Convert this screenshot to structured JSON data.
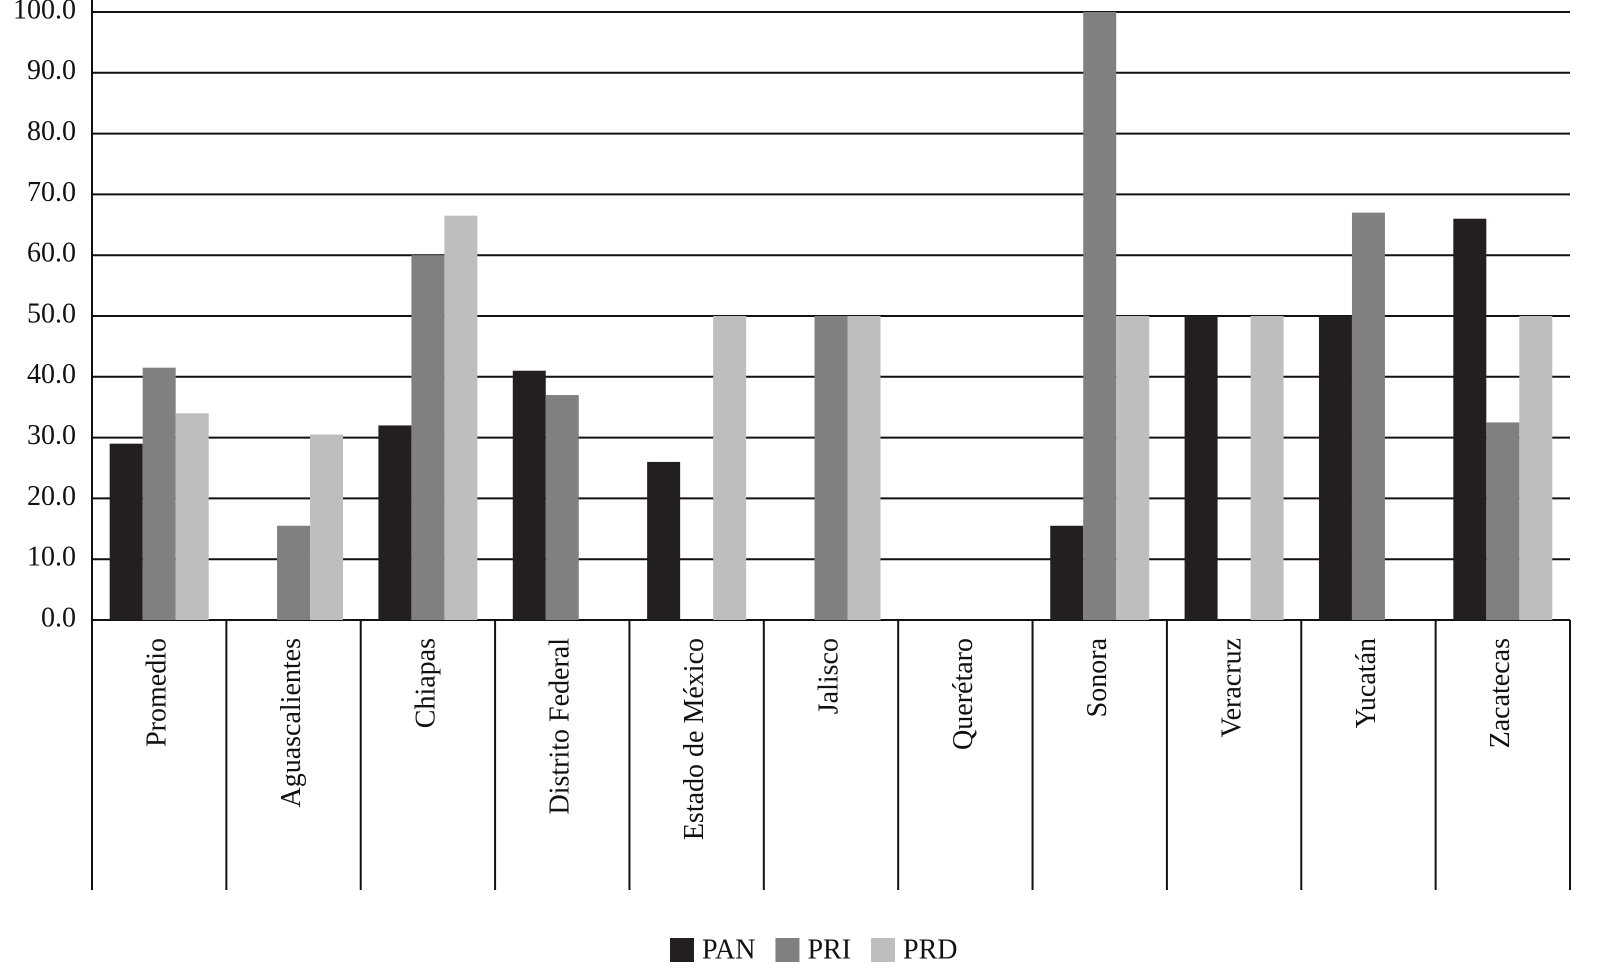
{
  "chart_data": {
    "type": "bar",
    "categories": [
      "Promedio",
      "Aguascalientes",
      "Chiapas",
      "Distrito Federal",
      "Estado de México",
      "Jalisco",
      "Querétaro",
      "Sonora",
      "Veracruz",
      "Yucatán",
      "Zacatecas"
    ],
    "series": [
      {
        "name": "PAN",
        "color": "#231f20",
        "values": [
          29,
          0,
          32,
          41,
          26,
          0,
          0,
          15.5,
          50,
          50,
          66
        ]
      },
      {
        "name": "PRI",
        "color": "#808083",
        "values": [
          41.5,
          15.5,
          60,
          37,
          0,
          50,
          0,
          100,
          0,
          67,
          32.5
        ]
      },
      {
        "name": "PRD",
        "color": "#bdbec0",
        "values": [
          34,
          30.5,
          66.5,
          0,
          50,
          50,
          0,
          50,
          50,
          0,
          50
        ]
      }
    ],
    "ylim": [
      0,
      100
    ],
    "yticks": [
      {
        "value": 0,
        "label": "0.0"
      },
      {
        "value": 10,
        "label": "10.0"
      },
      {
        "value": 20,
        "label": "20.0"
      },
      {
        "value": 30,
        "label": "30.0"
      },
      {
        "value": 40,
        "label": "40.0"
      },
      {
        "value": 50,
        "label": "50.0"
      },
      {
        "value": 60,
        "label": "60.0"
      },
      {
        "value": 70,
        "label": "70.0"
      },
      {
        "value": 80,
        "label": "80.0"
      },
      {
        "value": 90,
        "label": "90.0"
      },
      {
        "value": 100,
        "label": "100.0"
      }
    ],
    "grid": true
  }
}
